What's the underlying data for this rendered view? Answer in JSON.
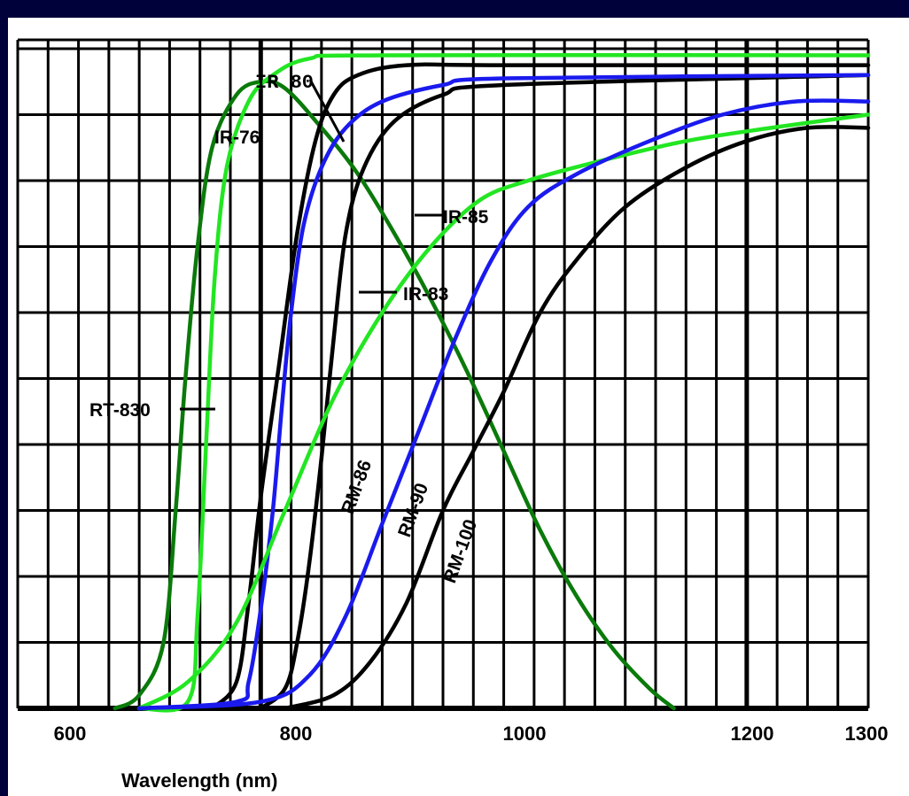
{
  "colors": {
    "frame": "#00003a",
    "green_dark": "#0a7a0a",
    "green_light": "#22e622",
    "blue": "#1a1aee",
    "black": "#000000"
  },
  "chart_data": {
    "type": "line",
    "title": "",
    "xlabel": "Wavelength (nm)",
    "ylabel": "",
    "xlim": [
      600,
      1300
    ],
    "x_tick_labels": [
      "600",
      "800",
      "1000",
      "1200",
      "1300"
    ],
    "x_tick_values": [
      600,
      800,
      1000,
      1200,
      1300
    ],
    "grid": true,
    "legend": "none (curves labelled inline)",
    "series": [
      {
        "name": "RT-830",
        "color": "green_dark",
        "points": [
          [
            680,
            0
          ],
          [
            700,
            0.2
          ],
          [
            720,
            1
          ],
          [
            730,
            3
          ],
          [
            738,
            5
          ],
          [
            748,
            7
          ],
          [
            760,
            8.5
          ],
          [
            780,
            9.3
          ],
          [
            800,
            9.5
          ],
          [
            820,
            9.4
          ],
          [
            850,
            8.8
          ],
          [
            880,
            8.1
          ],
          [
            910,
            7.2
          ],
          [
            940,
            6.2
          ],
          [
            970,
            5.1
          ],
          [
            1000,
            3.9
          ],
          [
            1030,
            2.7
          ],
          [
            1060,
            1.7
          ],
          [
            1090,
            0.9
          ],
          [
            1120,
            0.3
          ],
          [
            1140,
            0
          ]
        ]
      },
      {
        "name": "IR-76",
        "color": "green_light",
        "points": [
          [
            700,
            0
          ],
          [
            740,
            0.1
          ],
          [
            748,
            1.4
          ],
          [
            755,
            4
          ],
          [
            762,
            6.5
          ],
          [
            772,
            8.2
          ],
          [
            790,
            9.2
          ],
          [
            810,
            9.6
          ],
          [
            840,
            9.85
          ],
          [
            900,
            9.9
          ],
          [
            1300,
            9.9
          ]
        ]
      },
      {
        "name": "IR-80",
        "color": "black",
        "points": [
          [
            760,
            0
          ],
          [
            780,
            0.4
          ],
          [
            790,
            1.6
          ],
          [
            800,
            3.2
          ],
          [
            815,
            5.2
          ],
          [
            830,
            7.2
          ],
          [
            845,
            8.6
          ],
          [
            860,
            9.3
          ],
          [
            880,
            9.6
          ],
          [
            920,
            9.75
          ],
          [
            1000,
            9.75
          ],
          [
            1300,
            9.75
          ]
        ]
      },
      {
        "name": "IR-83",
        "color": "black",
        "points": [
          [
            800,
            0
          ],
          [
            820,
            0.3
          ],
          [
            830,
            1
          ],
          [
            840,
            2.2
          ],
          [
            850,
            3.8
          ],
          [
            860,
            5.6
          ],
          [
            870,
            7.2
          ],
          [
            885,
            8.2
          ],
          [
            910,
            8.9
          ],
          [
            950,
            9.3
          ],
          [
            1000,
            9.45
          ],
          [
            1300,
            9.6
          ]
        ]
      },
      {
        "name": "IR-85",
        "color": "blue",
        "points": [
          [
            700,
            0
          ],
          [
            780,
            0.1
          ],
          [
            790,
            0.4
          ],
          [
            800,
            1.5
          ],
          [
            810,
            3
          ],
          [
            818,
            4.7
          ],
          [
            825,
            6
          ],
          [
            835,
            7.3
          ],
          [
            850,
            8.2
          ],
          [
            870,
            8.8
          ],
          [
            900,
            9.2
          ],
          [
            950,
            9.45
          ],
          [
            1000,
            9.55
          ],
          [
            1300,
            9.6
          ]
        ]
      },
      {
        "name": "RM-86",
        "color": "green_light",
        "points": [
          [
            700,
            0
          ],
          [
            740,
            0.4
          ],
          [
            780,
            1.3
          ],
          [
            820,
            3
          ],
          [
            860,
            4.7
          ],
          [
            900,
            6
          ],
          [
            940,
            7
          ],
          [
            980,
            7.7
          ],
          [
            1020,
            8
          ],
          [
            1080,
            8.3
          ],
          [
            1150,
            8.6
          ],
          [
            1220,
            8.8
          ],
          [
            1300,
            9
          ]
        ]
      },
      {
        "name": "RM-90",
        "color": "blue",
        "points": [
          [
            700,
            0
          ],
          [
            800,
            0.1
          ],
          [
            840,
            0.5
          ],
          [
            870,
            1.4
          ],
          [
            900,
            2.8
          ],
          [
            930,
            4.2
          ],
          [
            960,
            5.6
          ],
          [
            990,
            6.8
          ],
          [
            1020,
            7.6
          ],
          [
            1060,
            8.1
          ],
          [
            1120,
            8.6
          ],
          [
            1180,
            9
          ],
          [
            1240,
            9.2
          ],
          [
            1300,
            9.2
          ]
        ]
      },
      {
        "name": "RM-100",
        "color": "black",
        "points": [
          [
            820,
            0
          ],
          [
            860,
            0.2
          ],
          [
            890,
            0.7
          ],
          [
            920,
            1.6
          ],
          [
            950,
            3
          ],
          [
            975,
            3.9
          ],
          [
            1000,
            4.8
          ],
          [
            1030,
            6
          ],
          [
            1060,
            6.8
          ],
          [
            1100,
            7.6
          ],
          [
            1150,
            8.2
          ],
          [
            1200,
            8.6
          ],
          [
            1250,
            8.8
          ],
          [
            1300,
            8.8
          ]
        ]
      }
    ]
  },
  "labels": {
    "RT-830": "RT-830",
    "IR-76": "IR-76",
    "IR-80": "IR 80",
    "IR-83": "IR-83",
    "IR-85": "IR-85",
    "RM-86": "RM-86",
    "RM-90": "RM-90",
    "RM-100": "RM-100"
  }
}
